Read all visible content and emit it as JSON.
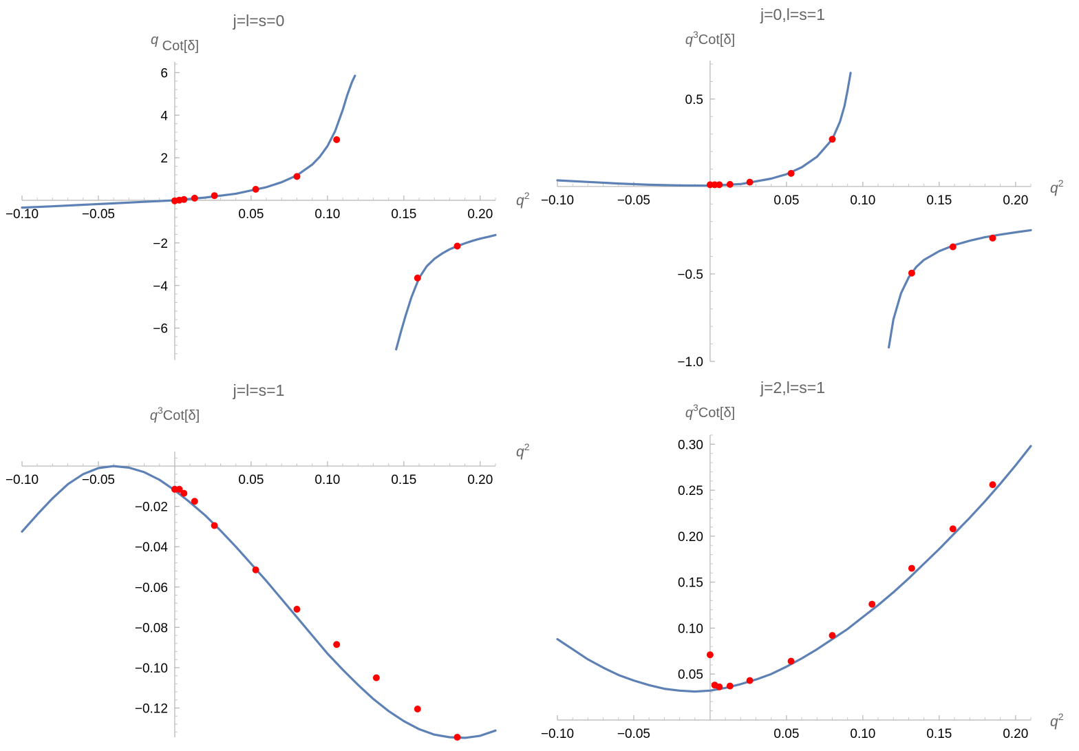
{
  "colors": {
    "curve": "#5e81b5",
    "points": "#ff0000",
    "axes": "#b3b3b3",
    "labels": "#646464"
  },
  "chart_data": [
    {
      "type": "line",
      "title": "j=l=s=0",
      "ylabel": "q Cot[δ]",
      "ylabel_parts": {
        "pre": "q",
        "sup": "",
        "post": " Cot[δ]"
      },
      "xlabel": "q²",
      "xlim": [
        -0.1,
        0.21
      ],
      "ylim": [
        -7.5,
        6.5
      ],
      "xticks": [
        -0.1,
        -0.05,
        0.05,
        0.1,
        0.15,
        0.2
      ],
      "xtick_labels": [
        "−0.10",
        "−0.05",
        "0.05",
        "0.10",
        "0.15",
        "0.20"
      ],
      "yticks": [
        -6,
        -4,
        -2,
        2,
        4,
        6
      ],
      "ytick_labels": [
        "−6",
        "−4",
        "−2",
        "2",
        "4",
        "6"
      ],
      "xticks_below": true,
      "series": [
        {
          "kind": "curve",
          "segments": [
            {
              "x": [
                -0.1,
                -0.08,
                -0.06,
                -0.04,
                -0.02,
                0.0,
                0.02,
                0.04,
                0.06,
                0.07,
                0.08,
                0.09,
                0.095,
                0.1,
                0.105,
                0.11,
                0.113,
                0.116,
                0.118
              ],
              "y": [
                -0.34,
                -0.28,
                -0.21,
                -0.14,
                -0.07,
                0.0,
                0.13,
                0.31,
                0.62,
                0.85,
                1.17,
                1.68,
                2.05,
                2.55,
                3.25,
                4.25,
                4.95,
                5.55,
                5.85
              ]
            },
            {
              "x": [
                0.145,
                0.148,
                0.151,
                0.155,
                0.16,
                0.165,
                0.17,
                0.175,
                0.18,
                0.185,
                0.19,
                0.195,
                0.2,
                0.205,
                0.21
              ],
              "y": [
                -7.0,
                -6.2,
                -5.45,
                -4.55,
                -3.65,
                -3.1,
                -2.75,
                -2.5,
                -2.3,
                -2.15,
                -2.02,
                -1.9,
                -1.8,
                -1.72,
                -1.63
              ]
            }
          ]
        },
        {
          "kind": "points",
          "x": [
            0.0,
            0.003,
            0.006,
            0.013,
            0.026,
            0.053,
            0.08,
            0.106,
            0.159,
            0.185
          ],
          "y": [
            -0.02,
            0.01,
            0.04,
            0.1,
            0.22,
            0.52,
            1.12,
            2.85,
            -3.65,
            -2.15
          ]
        }
      ]
    },
    {
      "type": "line",
      "title": "j=0,l=s=1",
      "ylabel": "q³Cot[δ]",
      "ylabel_parts": {
        "pre": "q",
        "sup": "3",
        "post": "Cot[δ]"
      },
      "xlabel": "q²",
      "xlim": [
        -0.1,
        0.21
      ],
      "ylim": [
        -1.0,
        0.72
      ],
      "xticks": [
        -0.1,
        -0.05,
        0.05,
        0.1,
        0.15,
        0.2
      ],
      "xtick_labels": [
        "−0.10",
        "−0.05",
        "0.05",
        "0.10",
        "0.15",
        "0.20"
      ],
      "yticks": [
        -1.0,
        -0.5,
        0.5
      ],
      "ytick_labels": [
        "−1.0",
        "−0.5",
        "0.5"
      ],
      "xticks_below": true,
      "series": [
        {
          "kind": "curve",
          "segments": [
            {
              "x": [
                -0.1,
                -0.08,
                -0.06,
                -0.04,
                -0.02,
                0.0,
                0.02,
                0.04,
                0.05,
                0.06,
                0.07,
                0.08,
                0.085,
                0.088,
                0.09,
                0.092
              ],
              "y": [
                0.035,
                0.026,
                0.017,
                0.01,
                0.006,
                0.005,
                0.014,
                0.045,
                0.07,
                0.11,
                0.17,
                0.27,
                0.37,
                0.46,
                0.55,
                0.65
              ]
            },
            {
              "x": [
                0.117,
                0.12,
                0.125,
                0.13,
                0.135,
                0.14,
                0.15,
                0.16,
                0.17,
                0.18,
                0.19,
                0.2,
                0.21
              ],
              "y": [
                -0.92,
                -0.76,
                -0.61,
                -0.52,
                -0.46,
                -0.42,
                -0.37,
                -0.335,
                -0.31,
                -0.29,
                -0.275,
                -0.262,
                -0.25
              ]
            }
          ]
        },
        {
          "kind": "points",
          "x": [
            0.0,
            0.003,
            0.006,
            0.013,
            0.026,
            0.053,
            0.08,
            0.132,
            0.159,
            0.185
          ],
          "y": [
            0.01,
            0.01,
            0.01,
            0.012,
            0.025,
            0.075,
            0.27,
            -0.495,
            -0.345,
            -0.295
          ]
        }
      ]
    },
    {
      "type": "line",
      "title": "j=l=s=1",
      "ylabel": "q³Cot[δ]",
      "ylabel_parts": {
        "pre": "q",
        "sup": "3",
        "post": "Cot[δ]"
      },
      "xlabel": "q²",
      "xlim": [
        -0.1,
        0.21
      ],
      "ylim": [
        -0.1345,
        0.0072
      ],
      "xticks": [
        -0.1,
        -0.05,
        0.05,
        0.1,
        0.15,
        0.2
      ],
      "xtick_labels": [
        "−0.10",
        "−0.05",
        "0.05",
        "0.10",
        "0.15",
        "0.20"
      ],
      "yticks": [
        -0.12,
        -0.1,
        -0.08,
        -0.06,
        -0.04,
        -0.02
      ],
      "ytick_labels": [
        "−0.12",
        "−0.10",
        "−0.08",
        "−0.06",
        "−0.04",
        "−0.02"
      ],
      "xticks_below": true,
      "series": [
        {
          "kind": "curve",
          "segments": [
            {
              "x": [
                -0.1,
                -0.09,
                -0.08,
                -0.07,
                -0.06,
                -0.05,
                -0.04,
                -0.03,
                -0.02,
                -0.01,
                0.0,
                0.01,
                0.02,
                0.03,
                0.04,
                0.05,
                0.06,
                0.07,
                0.08,
                0.09,
                0.1,
                0.11,
                0.12,
                0.13,
                0.14,
                0.15,
                0.16,
                0.17,
                0.18,
                0.19,
                0.2,
                0.21
              ],
              "y": [
                -0.0325,
                -0.024,
                -0.016,
                -0.009,
                -0.004,
                -0.001,
                0.0,
                -0.0008,
                -0.003,
                -0.0068,
                -0.012,
                -0.018,
                -0.0245,
                -0.032,
                -0.04,
                -0.0485,
                -0.057,
                -0.066,
                -0.075,
                -0.084,
                -0.093,
                -0.101,
                -0.1085,
                -0.1155,
                -0.1215,
                -0.1265,
                -0.1305,
                -0.1332,
                -0.1345,
                -0.1348,
                -0.1338,
                -0.1312
              ]
            }
          ]
        },
        {
          "kind": "points",
          "x": [
            0.0,
            0.003,
            0.006,
            0.013,
            0.026,
            0.053,
            0.08,
            0.106,
            0.132,
            0.159,
            0.185
          ],
          "y": [
            -0.0115,
            -0.0115,
            -0.0135,
            -0.0175,
            -0.0295,
            -0.0515,
            -0.071,
            -0.0885,
            -0.105,
            -0.1205,
            -0.1345
          ]
        }
      ]
    },
    {
      "type": "line",
      "title": "j=2,l=s=1",
      "ylabel": "q³Cot[δ]",
      "ylabel_parts": {
        "pre": "q",
        "sup": "3",
        "post": "Cot[δ]"
      },
      "xlabel": "q²",
      "xlim": [
        -0.1,
        0.21
      ],
      "ylim": [
        0.0,
        0.31
      ],
      "xticks": [
        -0.1,
        -0.05,
        0.05,
        0.1,
        0.15,
        0.2
      ],
      "xtick_labels": [
        "−0.10",
        "−0.05",
        "0.05",
        "0.10",
        "0.15",
        "0.20"
      ],
      "yticks": [
        0.05,
        0.1,
        0.15,
        0.2,
        0.25,
        0.3
      ],
      "ytick_labels": [
        "0.05",
        "0.10",
        "0.15",
        "0.20",
        "0.25",
        "0.30"
      ],
      "xticks_below": true,
      "series": [
        {
          "kind": "curve",
          "segments": [
            {
              "x": [
                -0.1,
                -0.09,
                -0.08,
                -0.07,
                -0.06,
                -0.05,
                -0.04,
                -0.03,
                -0.02,
                -0.01,
                0.0,
                0.01,
                0.02,
                0.03,
                0.04,
                0.05,
                0.06,
                0.07,
                0.08,
                0.09,
                0.1,
                0.11,
                0.12,
                0.13,
                0.14,
                0.15,
                0.16,
                0.17,
                0.18,
                0.19,
                0.2,
                0.21
              ],
              "y": [
                0.088,
                0.077,
                0.066,
                0.057,
                0.049,
                0.043,
                0.038,
                0.034,
                0.032,
                0.031,
                0.032,
                0.035,
                0.039,
                0.044,
                0.05,
                0.058,
                0.067,
                0.077,
                0.088,
                0.099,
                0.112,
                0.125,
                0.139,
                0.154,
                0.17,
                0.186,
                0.203,
                0.22,
                0.238,
                0.257,
                0.277,
                0.298
              ]
            }
          ]
        },
        {
          "kind": "points",
          "x": [
            0.0,
            0.003,
            0.006,
            0.013,
            0.026,
            0.053,
            0.08,
            0.106,
            0.132,
            0.159,
            0.185
          ],
          "y": [
            0.071,
            0.038,
            0.036,
            0.037,
            0.043,
            0.064,
            0.092,
            0.126,
            0.165,
            0.208,
            0.256
          ]
        }
      ]
    }
  ]
}
